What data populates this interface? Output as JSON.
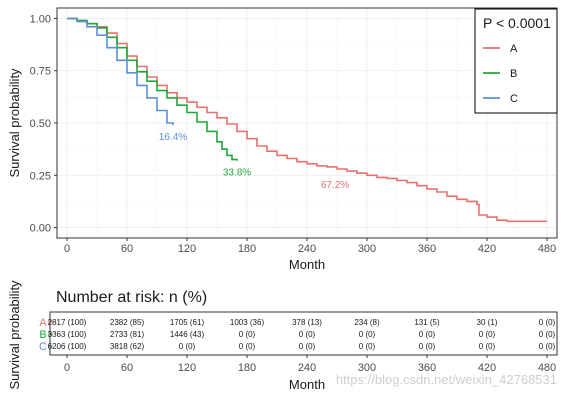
{
  "chart_data": [
    {
      "type": "line",
      "xlabel": "Month",
      "ylabel": "Survival probability",
      "xlim": [
        -10,
        490
      ],
      "ylim": [
        -0.05,
        1.05
      ],
      "x_ticks": [
        0,
        60,
        120,
        180,
        240,
        300,
        360,
        420,
        480
      ],
      "y_ticks": [
        0.0,
        0.25,
        0.5,
        0.75,
        1.0
      ],
      "y_tick_labels": [
        "0.00",
        "0.25",
        "0.50",
        "0.75",
        "1.00"
      ],
      "grid": true,
      "legend": {
        "title": "P < 0.0001",
        "placement": "top-right"
      },
      "series": [
        {
          "name": "A",
          "color": "#e8716f",
          "end_label": "67.2%",
          "points": [
            [
              0,
              1.0
            ],
            [
              10,
              0.99
            ],
            [
              20,
              0.975
            ],
            [
              30,
              0.96
            ],
            [
              40,
              0.93
            ],
            [
              50,
              0.88
            ],
            [
              60,
              0.82
            ],
            [
              70,
              0.77
            ],
            [
              80,
              0.72
            ],
            [
              90,
              0.68
            ],
            [
              100,
              0.645
            ],
            [
              110,
              0.62
            ],
            [
              120,
              0.6
            ],
            [
              130,
              0.575
            ],
            [
              140,
              0.55
            ],
            [
              150,
              0.525
            ],
            [
              160,
              0.495
            ],
            [
              170,
              0.46
            ],
            [
              180,
              0.425
            ],
            [
              190,
              0.39
            ],
            [
              200,
              0.365
            ],
            [
              210,
              0.345
            ],
            [
              220,
              0.33
            ],
            [
              230,
              0.315
            ],
            [
              240,
              0.305
            ],
            [
              250,
              0.295
            ],
            [
              260,
              0.29
            ],
            [
              270,
              0.28
            ],
            [
              280,
              0.27
            ],
            [
              290,
              0.26
            ],
            [
              300,
              0.25
            ],
            [
              310,
              0.24
            ],
            [
              320,
              0.235
            ],
            [
              330,
              0.225
            ],
            [
              340,
              0.215
            ],
            [
              350,
              0.2
            ],
            [
              360,
              0.185
            ],
            [
              370,
              0.17
            ],
            [
              380,
              0.15
            ],
            [
              390,
              0.135
            ],
            [
              400,
              0.125
            ],
            [
              410,
              0.11
            ],
            [
              412,
              0.06
            ],
            [
              420,
              0.05
            ],
            [
              430,
              0.035
            ],
            [
              440,
              0.03
            ],
            [
              460,
              0.03
            ],
            [
              480,
              0.03
            ]
          ]
        },
        {
          "name": "B",
          "color": "#1ea83a",
          "end_label": "33.8%",
          "points": [
            [
              0,
              1.0
            ],
            [
              10,
              0.99
            ],
            [
              20,
              0.975
            ],
            [
              30,
              0.955
            ],
            [
              40,
              0.91
            ],
            [
              50,
              0.86
            ],
            [
              60,
              0.8
            ],
            [
              70,
              0.745
            ],
            [
              80,
              0.7
            ],
            [
              90,
              0.655
            ],
            [
              100,
              0.62
            ],
            [
              110,
              0.585
            ],
            [
              120,
              0.55
            ],
            [
              130,
              0.505
            ],
            [
              140,
              0.46
            ],
            [
              150,
              0.41
            ],
            [
              155,
              0.375
            ],
            [
              160,
              0.345
            ],
            [
              165,
              0.325
            ],
            [
              170,
              0.32
            ]
          ]
        },
        {
          "name": "C",
          "color": "#5d8fd9",
          "end_label": "16.4%",
          "points": [
            [
              0,
              1.0
            ],
            [
              10,
              0.985
            ],
            [
              20,
              0.96
            ],
            [
              30,
              0.92
            ],
            [
              40,
              0.86
            ],
            [
              50,
              0.8
            ],
            [
              60,
              0.74
            ],
            [
              70,
              0.68
            ],
            [
              80,
              0.62
            ],
            [
              90,
              0.56
            ],
            [
              100,
              0.5
            ],
            [
              106,
              0.49
            ]
          ]
        }
      ]
    },
    {
      "type": "table",
      "title": "Number at risk: n (%)",
      "xlabel": "Month",
      "ylabel": "Survival probability",
      "x_ticks": [
        0,
        60,
        120,
        180,
        240,
        300,
        360,
        420,
        480
      ],
      "rows": [
        {
          "group": "A",
          "color": "#e8716f",
          "cells": [
            "2817 (100)",
            "2382 (85)",
            "1705 (61)",
            "1003 (36)",
            "378 (13)",
            "234 (8)",
            "131 (5)",
            "30 (1)",
            "0 (0)"
          ]
        },
        {
          "group": "B",
          "color": "#1ea83a",
          "cells": [
            "3363 (100)",
            "2733 (81)",
            "1446 (43)",
            "0 (0)",
            "0 (0)",
            "0 (0)",
            "0 (0)",
            "0 (0)",
            "0 (0)"
          ]
        },
        {
          "group": "C",
          "color": "#5d8fd9",
          "cells": [
            "6206 (100)",
            "3818 (62)",
            "0 (0)",
            "0 (0)",
            "0 (0)",
            "0 (0)",
            "0 (0)",
            "0 (0)",
            "0 (0)"
          ]
        }
      ]
    }
  ],
  "watermark": "https://blog.csdn.net/weixin_42768531"
}
